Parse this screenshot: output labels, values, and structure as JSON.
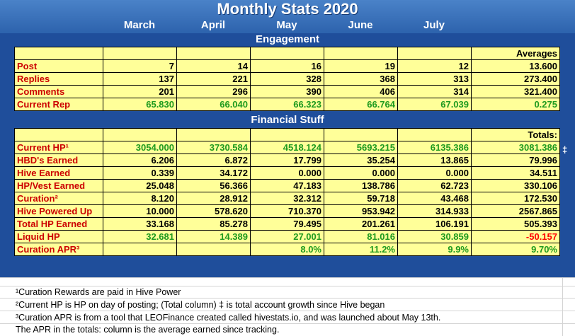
{
  "title": "Monthly Stats 2020",
  "months": [
    "March",
    "April",
    "May",
    "June",
    "July"
  ],
  "engagement": {
    "title": "Engagement",
    "header_extra": "Averages",
    "rows": [
      {
        "label": "Post",
        "values": [
          "7",
          "14",
          "16",
          "19",
          "12"
        ],
        "total": "13.600"
      },
      {
        "label": "Replies",
        "values": [
          "137",
          "221",
          "328",
          "368",
          "313"
        ],
        "total": "273.400"
      },
      {
        "label": "Comments",
        "values": [
          "201",
          "296",
          "390",
          "406",
          "314"
        ],
        "total": "321.400"
      },
      {
        "label": "Current Rep",
        "values": [
          "65.830",
          "66.040",
          "66.323",
          "66.764",
          "67.039"
        ],
        "total": "0.275"
      }
    ]
  },
  "financial": {
    "title": "Financial Stuff",
    "header_extra": "Totals:",
    "rows": [
      {
        "label": "Current HP¹",
        "values": [
          "3054.000",
          "3730.584",
          "4518.124",
          "5693.215",
          "6135.386"
        ],
        "total": "3081.386"
      },
      {
        "label": "HBD's Earned",
        "values": [
          "6.206",
          "6.872",
          "17.799",
          "35.254",
          "13.865"
        ],
        "total": "79.996"
      },
      {
        "label": "Hive Earned",
        "values": [
          "0.339",
          "34.172",
          "0.000",
          "0.000",
          "0.000"
        ],
        "total": "34.511"
      },
      {
        "label": "HP/Vest Earned",
        "values": [
          "25.048",
          "56.366",
          "47.183",
          "138.786",
          "62.723"
        ],
        "total": "330.106"
      },
      {
        "label": "Curation²",
        "values": [
          "8.120",
          "28.912",
          "32.312",
          "59.718",
          "43.468"
        ],
        "total": "172.530"
      },
      {
        "label": "Hive Powered Up",
        "values": [
          "10.000",
          "578.620",
          "710.370",
          "953.942",
          "314.933"
        ],
        "total": "2567.865"
      },
      {
        "label": "Total HP Earned",
        "values": [
          "33.168",
          "85.278",
          "79.495",
          "201.261",
          "106.191"
        ],
        "total": "505.393"
      },
      {
        "label": "Liquid HP",
        "values": [
          "32.681",
          "14.389",
          "27.001",
          "81.016",
          "30.859"
        ],
        "total": "-50.157"
      },
      {
        "label": "Curation APR³",
        "values": [
          "",
          "",
          "8.0%",
          "11.2%",
          "9.9%"
        ],
        "total": "9.70%"
      }
    ],
    "side_mark": "‡"
  },
  "footnotes": [
    "¹Curation Rewards are paid in Hive Power",
    "²Current HP is HP on day of posting; (Total column) ‡ is total account growth since Hive began",
    "³Curation APR is from a tool that LEOFinance created called hivestats.io, and was launched about May 13th.",
    "The APR in the totals: column is the average earned since tracking."
  ],
  "colors": {
    "banner": "#1f4e9b",
    "cell": "#ffff99",
    "label": "#cc0000",
    "green": "#1e9a1e",
    "negative": "#ff0000"
  }
}
